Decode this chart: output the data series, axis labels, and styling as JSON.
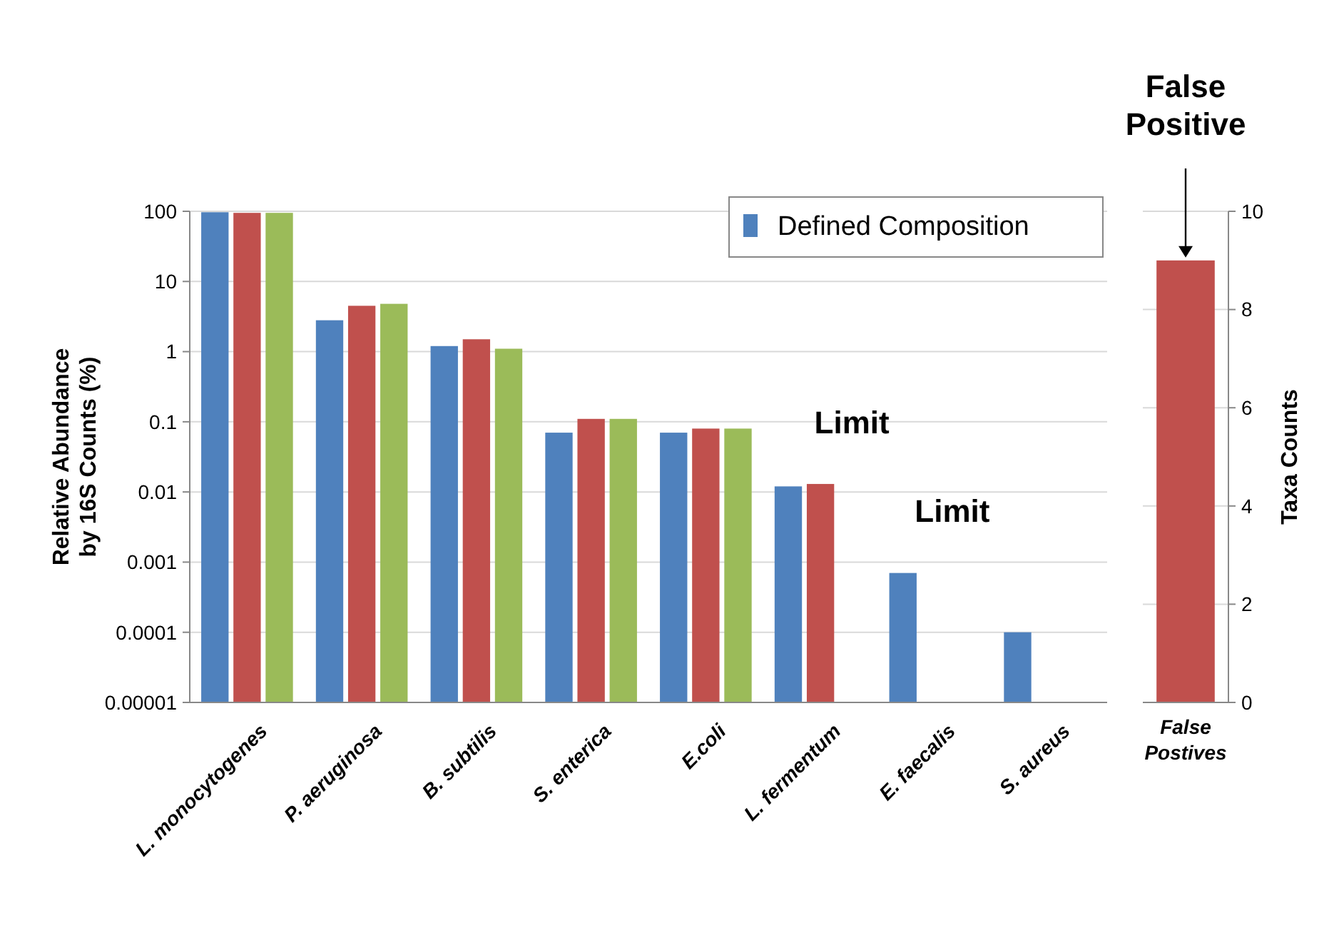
{
  "chart_data": [
    {
      "type": "bar",
      "ylabel": "Relative Abundance\nby 16S Counts (%)",
      "log": "y",
      "grid": "y",
      "legend": "top right",
      "categories": [
        "L. monocytogenes",
        "P. aeruginosa",
        "B. subtilis",
        "S. enterica",
        "E.coli",
        "L. fermentum",
        "E. faecalis",
        "S. aureus"
      ],
      "series": [
        {
          "name": "Defined Composition",
          "color": "#4f81bd",
          "values": [
            97,
            2.8,
            1.2,
            0.07,
            0.07,
            0.012,
            0.0007,
            0.0001
          ]
        },
        {
          "color": "#c0504d",
          "values": [
            95,
            4.5,
            1.5,
            0.11,
            0.08,
            0.013,
            null,
            null
          ]
        },
        {
          "color": "#9bbb59",
          "values": [
            95,
            4.8,
            1.1,
            0.11,
            0.08,
            null,
            null,
            null
          ]
        }
      ],
      "ylim": [
        1e-05,
        100
      ],
      "yticks": [
        {
          "value": 1e-05,
          "label": "0.00001"
        },
        0.0001,
        0.001,
        0.01,
        0.1,
        1,
        10,
        100
      ],
      "annotations": [
        "Limit",
        "Limit"
      ]
    },
    {
      "type": "bar",
      "y2label": "Taxa Counts",
      "grid": "y",
      "categories": [
        "False Postives"
      ],
      "series": [
        {
          "color": "#c0504d",
          "values": [
            9
          ],
          "axis": "y2"
        }
      ],
      "y2lim": [
        0,
        10
      ],
      "y2ticks": [
        0,
        2,
        4,
        6,
        8,
        10
      ],
      "annotations": [
        "False Positive"
      ]
    }
  ]
}
